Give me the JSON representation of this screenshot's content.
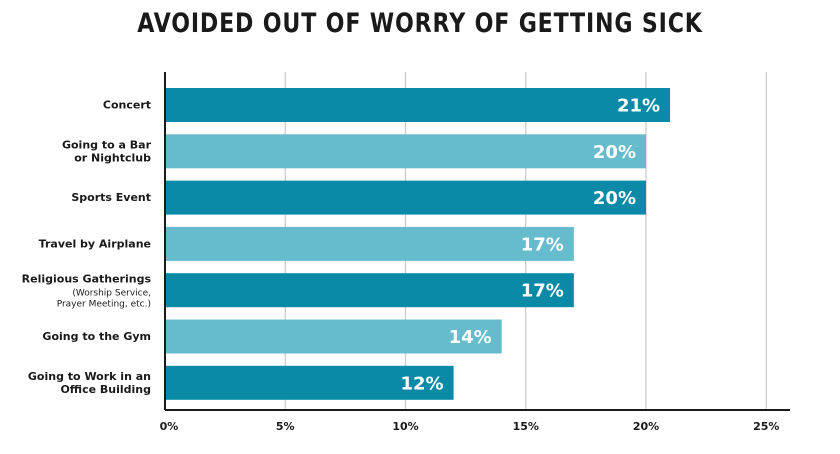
{
  "chart_data": {
    "type": "bar",
    "orientation": "horizontal",
    "title": "AVOIDED OUT OF WORRY OF GETTING SICK",
    "xlabel": "",
    "ylabel": "",
    "xlim": [
      0,
      26
    ],
    "ticks": [
      0,
      5,
      10,
      15,
      20,
      25
    ],
    "tick_labels": [
      "0%",
      "5%",
      "10%",
      "15%",
      "20%",
      "25%"
    ],
    "grid": true,
    "colors": {
      "dark": "#0a8aa6",
      "light": "#66bccd"
    },
    "categories": [
      {
        "lines": [
          "Concert"
        ],
        "sub": [],
        "value": 21,
        "label": "21%",
        "shade": "dark"
      },
      {
        "lines": [
          "Going to a Bar",
          "or Nightclub"
        ],
        "sub": [],
        "value": 20,
        "label": "20%",
        "shade": "light"
      },
      {
        "lines": [
          "Sports Event"
        ],
        "sub": [],
        "value": 20,
        "label": "20%",
        "shade": "dark"
      },
      {
        "lines": [
          "Travel by Airplane"
        ],
        "sub": [],
        "value": 17,
        "label": "17%",
        "shade": "light"
      },
      {
        "lines": [
          "Religious Gatherings"
        ],
        "sub": [
          "(Worship Service,",
          "Prayer Meeting, etc.)"
        ],
        "value": 17,
        "label": "17%",
        "shade": "dark"
      },
      {
        "lines": [
          "Going to the Gym"
        ],
        "sub": [],
        "value": 14,
        "label": "14%",
        "shade": "light"
      },
      {
        "lines": [
          "Going to Work in an",
          "Office Building"
        ],
        "sub": [],
        "value": 12,
        "label": "12%",
        "shade": "dark"
      }
    ]
  }
}
